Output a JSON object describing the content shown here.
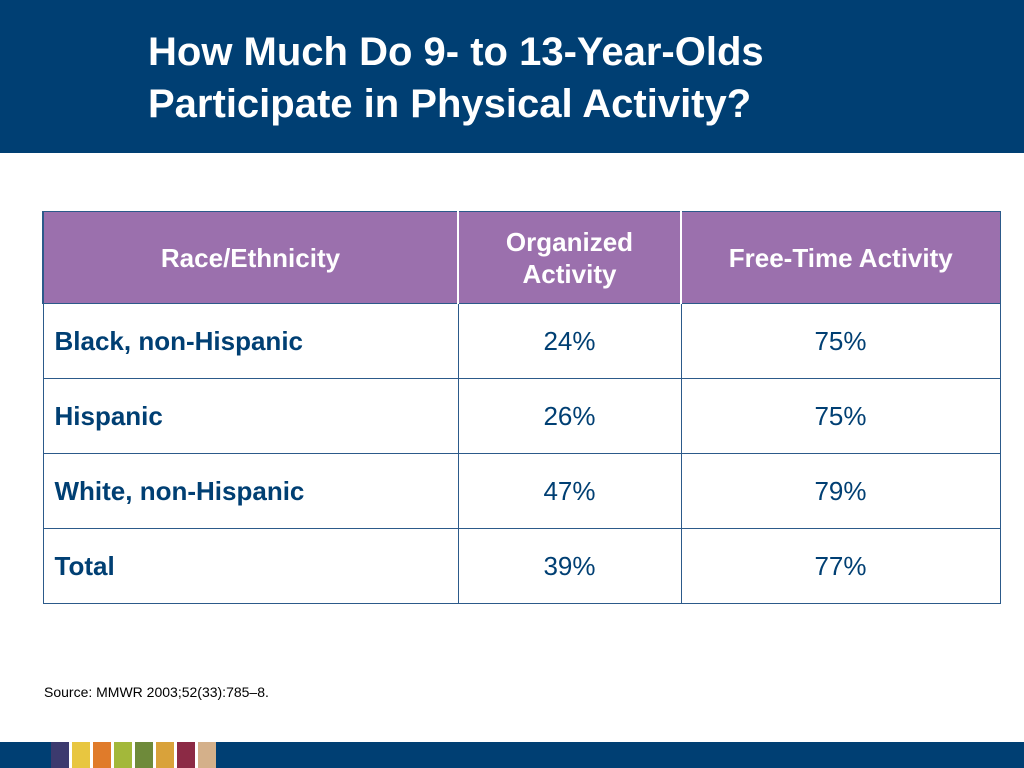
{
  "title": {
    "line1": "How Much Do 9- to 13-Year-Olds",
    "line2": "Participate in Physical Activity?"
  },
  "table": {
    "headers": [
      "Race/Ethnicity",
      "Organized Activity",
      "Free-Time Activity"
    ],
    "rows": [
      {
        "group": "Black, non-Hispanic",
        "organized": "24%",
        "free_time": "75%"
      },
      {
        "group": "Hispanic",
        "organized": "26%",
        "free_time": "75%"
      },
      {
        "group": "White, non-Hispanic",
        "organized": "47%",
        "free_time": "79%"
      },
      {
        "group": "Total",
        "organized": "39%",
        "free_time": "77%"
      }
    ]
  },
  "source": "Source: MMWR 2003;52(33):785–8.",
  "colors": {
    "header_bg": "#003f73",
    "table_header_bg": "#9b70ad",
    "text_blue": "#003f73",
    "footer_swatches": [
      "#3c3a6e",
      "#e8c640",
      "#e07b2a",
      "#a3b83a",
      "#6e8a3a",
      "#d9a23a",
      "#8c2a45",
      "#d4b08a"
    ]
  }
}
